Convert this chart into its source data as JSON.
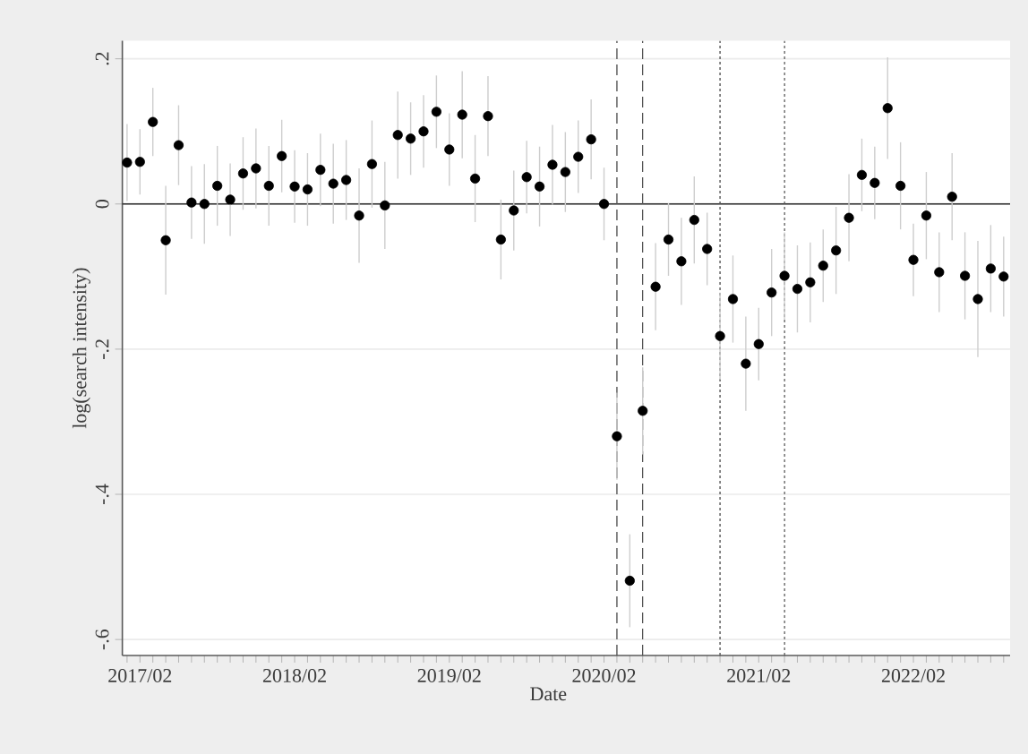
{
  "chart_data": {
    "type": "scatter",
    "xlabel": "Date",
    "ylabel": "log(search intensity)",
    "x": [
      "2017-01",
      "2017-02",
      "2017-03",
      "2017-04",
      "2017-05",
      "2017-06",
      "2017-07",
      "2017-08",
      "2017-09",
      "2017-10",
      "2017-11",
      "2017-12",
      "2018-01",
      "2018-02",
      "2018-03",
      "2018-04",
      "2018-05",
      "2018-06",
      "2018-07",
      "2018-08",
      "2018-09",
      "2018-10",
      "2018-11",
      "2018-12",
      "2019-01",
      "2019-02",
      "2019-03",
      "2019-04",
      "2019-05",
      "2019-06",
      "2019-07",
      "2019-08",
      "2019-09",
      "2019-10",
      "2019-11",
      "2019-12",
      "2020-01",
      "2020-02",
      "2020-03",
      "2020-04",
      "2020-05",
      "2020-06",
      "2020-07",
      "2020-08",
      "2020-09",
      "2020-10",
      "2020-11",
      "2020-12",
      "2021-01",
      "2021-02",
      "2021-03",
      "2021-04",
      "2021-05",
      "2021-06",
      "2021-07",
      "2021-08",
      "2021-09",
      "2021-10",
      "2021-11",
      "2021-12",
      "2022-01",
      "2022-02",
      "2022-03",
      "2022-04",
      "2022-05",
      "2022-06",
      "2022-07",
      "2022-08",
      "2022-09"
    ],
    "series": [
      {
        "color": "#000000",
        "values": [
          0.057,
          0.058,
          0.113,
          -0.05,
          0.081,
          0.002,
          0.0,
          0.025,
          0.006,
          0.042,
          0.049,
          0.025,
          0.066,
          0.024,
          0.02,
          0.047,
          0.028,
          0.033,
          -0.016,
          0.055,
          -0.002,
          0.095,
          0.09,
          0.1,
          0.127,
          0.075,
          0.123,
          0.035,
          0.121,
          -0.049,
          -0.009,
          0.037,
          0.024,
          0.054,
          0.044,
          0.065,
          0.089,
          0.0,
          -0.32,
          -0.519,
          -0.285,
          -0.114,
          -0.049,
          -0.079,
          -0.022,
          -0.062,
          -0.182,
          -0.131,
          -0.22,
          -0.193,
          -0.122,
          -0.099,
          -0.117,
          -0.108,
          -0.085,
          -0.064,
          -0.019,
          0.04,
          0.029,
          0.132,
          0.025,
          -0.077,
          -0.016,
          -0.094,
          0.01,
          -0.099,
          -0.131,
          -0.089,
          -0.1
        ],
        "errors": [
          0.053,
          0.045,
          0.047,
          0.075,
          0.055,
          0.05,
          0.055,
          0.055,
          0.05,
          0.05,
          0.055,
          0.055,
          0.05,
          0.05,
          0.05,
          0.05,
          0.055,
          0.055,
          0.065,
          0.06,
          0.06,
          0.06,
          0.05,
          0.05,
          0.05,
          0.05,
          0.06,
          0.06,
          0.055,
          0.055,
          0.055,
          0.05,
          0.055,
          0.055,
          0.055,
          0.05,
          0.055,
          0.05,
          0.06,
          0.064,
          0.06,
          0.06,
          0.05,
          0.06,
          0.06,
          0.05,
          0.06,
          0.06,
          0.065,
          0.05,
          0.06,
          0.06,
          0.06,
          0.055,
          0.05,
          0.06,
          0.06,
          0.05,
          0.05,
          0.07,
          0.06,
          0.05,
          0.06,
          0.055,
          0.06,
          0.06,
          0.08,
          0.06,
          0.055
        ]
      }
    ],
    "xlim": [
      "2016-12-20",
      "2022-09-16"
    ],
    "xticks": [
      {
        "value": "2017-01",
        "label": null
      },
      {
        "value": "2017-02",
        "label": "2017/02"
      },
      {
        "value": "2017-03",
        "label": null
      },
      {
        "value": "2017-04",
        "label": null
      },
      {
        "value": "2017-05",
        "label": null
      },
      {
        "value": "2017-06",
        "label": null
      },
      {
        "value": "2017-07",
        "label": null
      },
      {
        "value": "2017-08",
        "label": null
      },
      {
        "value": "2017-09",
        "label": null
      },
      {
        "value": "2017-10",
        "label": null
      },
      {
        "value": "2017-11",
        "label": null
      },
      {
        "value": "2017-12",
        "label": null
      },
      {
        "value": "2018-01",
        "label": null
      },
      {
        "value": "2018-02",
        "label": "2018/02"
      },
      {
        "value": "2018-03",
        "label": null
      },
      {
        "value": "2018-04",
        "label": null
      },
      {
        "value": "2018-05",
        "label": null
      },
      {
        "value": "2018-06",
        "label": null
      },
      {
        "value": "2018-07",
        "label": null
      },
      {
        "value": "2018-08",
        "label": null
      },
      {
        "value": "2018-09",
        "label": null
      },
      {
        "value": "2018-10",
        "label": null
      },
      {
        "value": "2018-11",
        "label": null
      },
      {
        "value": "2018-12",
        "label": null
      },
      {
        "value": "2019-01",
        "label": null
      },
      {
        "value": "2019-02",
        "label": "2019/02"
      },
      {
        "value": "2019-03",
        "label": null
      },
      {
        "value": "2019-04",
        "label": null
      },
      {
        "value": "2019-05",
        "label": null
      },
      {
        "value": "2019-06",
        "label": null
      },
      {
        "value": "2019-07",
        "label": null
      },
      {
        "value": "2019-08",
        "label": null
      },
      {
        "value": "2019-09",
        "label": null
      },
      {
        "value": "2019-10",
        "label": null
      },
      {
        "value": "2019-11",
        "label": null
      },
      {
        "value": "2019-12",
        "label": null
      },
      {
        "value": "2020-01",
        "label": null
      },
      {
        "value": "2020-02",
        "label": "2020/02"
      },
      {
        "value": "2020-03",
        "label": null
      },
      {
        "value": "2020-04",
        "label": null
      },
      {
        "value": "2020-05",
        "label": null
      },
      {
        "value": "2020-06",
        "label": null
      },
      {
        "value": "2020-07",
        "label": null
      },
      {
        "value": "2020-08",
        "label": null
      },
      {
        "value": "2020-09",
        "label": null
      },
      {
        "value": "2020-10",
        "label": null
      },
      {
        "value": "2020-11",
        "label": null
      },
      {
        "value": "2020-12",
        "label": null
      },
      {
        "value": "2021-01",
        "label": null
      },
      {
        "value": "2021-02",
        "label": "2021/02"
      },
      {
        "value": "2021-03",
        "label": null
      },
      {
        "value": "2021-04",
        "label": null
      },
      {
        "value": "2021-05",
        "label": null
      },
      {
        "value": "2021-06",
        "label": null
      },
      {
        "value": "2021-07",
        "label": null
      },
      {
        "value": "2021-08",
        "label": null
      },
      {
        "value": "2021-09",
        "label": null
      },
      {
        "value": "2021-10",
        "label": null
      },
      {
        "value": "2021-11",
        "label": null
      },
      {
        "value": "2021-12",
        "label": null
      },
      {
        "value": "2022-01",
        "label": null
      },
      {
        "value": "2022-02",
        "label": "2022/02"
      },
      {
        "value": "2022-03",
        "label": null
      },
      {
        "value": "2022-04",
        "label": null
      },
      {
        "value": "2022-05",
        "label": null
      },
      {
        "value": "2022-06",
        "label": null
      },
      {
        "value": "2022-07",
        "label": null
      },
      {
        "value": "2022-08",
        "label": null
      },
      {
        "value": "2022-09",
        "label": null
      }
    ],
    "ylim": [
      -0.622,
      0.225
    ],
    "yticks": [
      {
        "value": -0.6,
        "label": "-.6"
      },
      {
        "value": -0.4,
        "label": "-.4"
      },
      {
        "value": -0.2,
        "label": "-.2"
      },
      {
        "value": 0,
        "label": "0"
      },
      {
        "value": 0.2,
        "label": ".2"
      }
    ],
    "grid": "y",
    "marker": "circle",
    "ref_lines": [
      {
        "axis": "y",
        "value": 0,
        "color": "#333333",
        "line_style": "solid"
      },
      {
        "axis": "x",
        "value": "2020-03",
        "color": "#555555",
        "line_style": "dashed"
      },
      {
        "axis": "x",
        "value": "2020-05",
        "color": "#555555",
        "line_style": "dashed"
      },
      {
        "axis": "x",
        "value": "2020-11",
        "color": "#555555",
        "line_style": "dotted"
      },
      {
        "axis": "x",
        "value": "2021-04",
        "color": "#555555",
        "line_style": "dotted"
      }
    ]
  }
}
